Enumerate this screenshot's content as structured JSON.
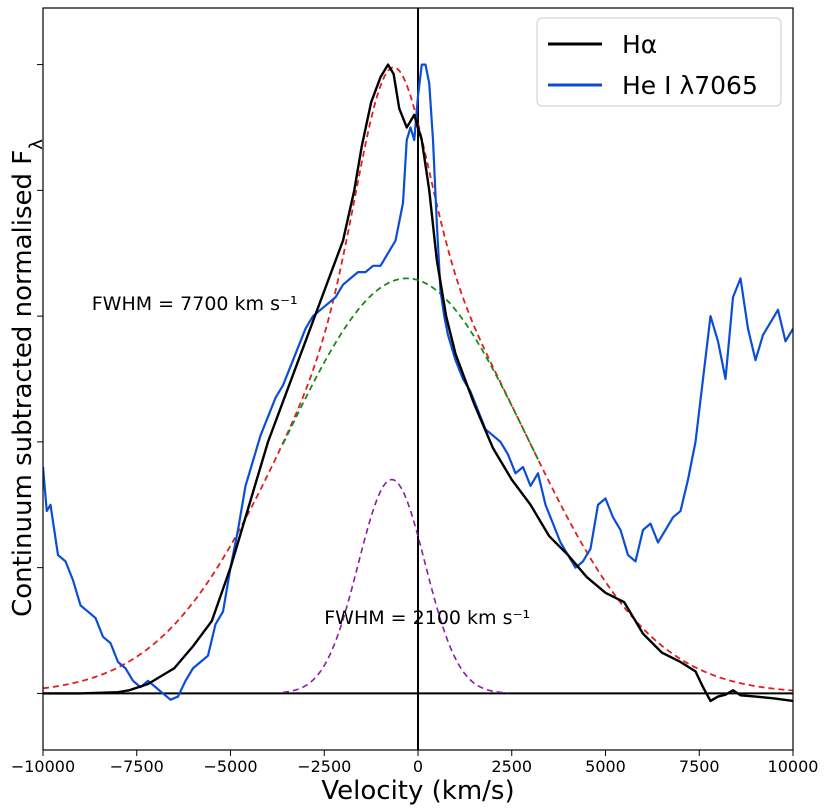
{
  "chart_data": {
    "type": "line",
    "title": "",
    "xlabel": "Velocity (km/s)",
    "ylabel": "Continuum subtracted normalised Fλ",
    "xlim": [
      -10000,
      10000
    ],
    "ylim": [
      -0.09,
      1.09
    ],
    "x_ticks": [
      -10000,
      -7500,
      -5000,
      -2500,
      0,
      2500,
      5000,
      7500,
      10000
    ],
    "x_tick_labels": [
      "−10000",
      "−7500",
      "−5000",
      "−2500",
      "0",
      "2500",
      "5000",
      "7500",
      "10000"
    ],
    "y_ticks": [
      0,
      0.2,
      0.4,
      0.6,
      0.8,
      1.0
    ],
    "y_tick_labels_visible": false,
    "reference_lines": {
      "hline_y": 0,
      "vline_x": 0
    },
    "legend": {
      "position": "top-right",
      "entries": [
        "Hα",
        "He I λ7065"
      ]
    },
    "annotations": [
      {
        "text": "FWHM = 7700 km s⁻¹",
        "x": -8700,
        "y": 0.61
      },
      {
        "text": "FWHM = 2100 km s⁻¹",
        "x": -2500,
        "y": 0.11
      }
    ],
    "series": [
      {
        "name": "Hα",
        "color": "#000000",
        "style": "solid",
        "x": [
          -10000,
          -9000,
          -8000,
          -7700,
          -7200,
          -6500,
          -6000,
          -5500,
          -5000,
          -4500,
          -4000,
          -3500,
          -3000,
          -2500,
          -2000,
          -1700,
          -1500,
          -1250,
          -1000,
          -800,
          -650,
          -500,
          -300,
          -100,
          0,
          100,
          300,
          500,
          750,
          1000,
          1250,
          1500,
          2000,
          2500,
          3000,
          3500,
          4000,
          4500,
          5000,
          5500,
          6000,
          6500,
          7000,
          7400,
          7600,
          7800,
          8000,
          8200,
          8400,
          8600,
          9000,
          9500,
          10000
        ],
        "y": [
          0,
          0,
          0.002,
          0.005,
          0.015,
          0.04,
          0.075,
          0.115,
          0.2,
          0.3,
          0.4,
          0.48,
          0.56,
          0.64,
          0.72,
          0.8,
          0.87,
          0.94,
          0.98,
          1.0,
          0.985,
          0.93,
          0.9,
          0.92,
          0.9,
          0.88,
          0.8,
          0.69,
          0.6,
          0.54,
          0.5,
          0.46,
          0.39,
          0.34,
          0.3,
          0.25,
          0.22,
          0.185,
          0.16,
          0.145,
          0.095,
          0.065,
          0.05,
          0.035,
          0.01,
          -0.012,
          -0.005,
          -0.002,
          0.005,
          -0.003,
          -0.005,
          -0.008,
          -0.012
        ]
      },
      {
        "name": "He I λ7065",
        "color": "#0b4ed6",
        "style": "solid",
        "x": [
          -10000,
          -9900,
          -9800,
          -9600,
          -9400,
          -9200,
          -9000,
          -8800,
          -8600,
          -8400,
          -8200,
          -8000,
          -7800,
          -7600,
          -7400,
          -7200,
          -7000,
          -6800,
          -6600,
          -6400,
          -6200,
          -6000,
          -5800,
          -5600,
          -5400,
          -5200,
          -5000,
          -4800,
          -4600,
          -4400,
          -4200,
          -4000,
          -3800,
          -3600,
          -3400,
          -3200,
          -3000,
          -2800,
          -2600,
          -2400,
          -2200,
          -2000,
          -1800,
          -1600,
          -1400,
          -1200,
          -1000,
          -800,
          -600,
          -400,
          -300,
          -200,
          -100,
          0,
          100,
          200,
          300,
          400,
          500,
          600,
          700,
          800,
          1000,
          1200,
          1400,
          1600,
          1800,
          2000,
          2200,
          2400,
          2600,
          2800,
          3000,
          3200,
          3400,
          3600,
          3800,
          4000,
          4200,
          4400,
          4600,
          4800,
          5000,
          5200,
          5400,
          5600,
          5800,
          6000,
          6200,
          6400,
          6600,
          6800,
          7000,
          7200,
          7400,
          7600,
          7800,
          8000,
          8200,
          8400,
          8600,
          8800,
          9000,
          9200,
          9400,
          9600,
          9800,
          10000
        ],
        "y": [
          0.36,
          0.29,
          0.3,
          0.22,
          0.21,
          0.18,
          0.14,
          0.13,
          0.12,
          0.09,
          0.08,
          0.05,
          0.04,
          0.02,
          0.01,
          0.02,
          0.01,
          0.0,
          -0.01,
          -0.005,
          0.02,
          0.04,
          0.05,
          0.06,
          0.11,
          0.13,
          0.2,
          0.26,
          0.33,
          0.37,
          0.41,
          0.44,
          0.47,
          0.49,
          0.52,
          0.55,
          0.58,
          0.6,
          0.61,
          0.62,
          0.63,
          0.65,
          0.66,
          0.67,
          0.67,
          0.68,
          0.68,
          0.7,
          0.72,
          0.78,
          0.88,
          0.9,
          0.88,
          0.95,
          1.0,
          1.0,
          0.97,
          0.88,
          0.75,
          0.64,
          0.6,
          0.57,
          0.53,
          0.5,
          0.48,
          0.45,
          0.42,
          0.41,
          0.4,
          0.38,
          0.35,
          0.36,
          0.33,
          0.35,
          0.3,
          0.27,
          0.24,
          0.22,
          0.2,
          0.21,
          0.23,
          0.3,
          0.31,
          0.28,
          0.26,
          0.22,
          0.21,
          0.26,
          0.27,
          0.24,
          0.26,
          0.28,
          0.29,
          0.34,
          0.4,
          0.5,
          0.6,
          0.56,
          0.5,
          0.63,
          0.66,
          0.58,
          0.53,
          0.57,
          0.59,
          0.61,
          0.56,
          0.58
        ]
      }
    ],
    "fits": [
      {
        "name": "total fit",
        "color": "#e0201b",
        "style": "dashed",
        "model": "sum of gaussians",
        "x_range": [
          -10000,
          10000
        ]
      },
      {
        "name": "broad component",
        "color": "#1a8a1a",
        "style": "dashed",
        "amplitude": 0.66,
        "center": -300,
        "fwhm": 7700,
        "x_range": [
          -3600,
          3200
        ]
      },
      {
        "name": "narrow component",
        "color": "#8a1bab",
        "style": "dashed",
        "amplitude": 0.34,
        "center": -700,
        "fwhm": 2100,
        "x_range": [
          -3600,
          2400
        ]
      }
    ]
  }
}
